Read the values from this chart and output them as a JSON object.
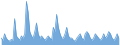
{
  "values": [
    1.5,
    1.0,
    2.5,
    1.5,
    1.0,
    0.8,
    1.2,
    1.0,
    6.0,
    2.0,
    1.5,
    1.0,
    2.0,
    1.5,
    2.5,
    10.0,
    7.5,
    3.0,
    2.0,
    1.5,
    3.0,
    5.0,
    2.5,
    1.5,
    2.0,
    1.5,
    1.0,
    1.5,
    2.0,
    1.5,
    1.0,
    4.0,
    3.0,
    7.0,
    4.0,
    2.5,
    1.5,
    1.5,
    2.5,
    4.0,
    2.0,
    1.5,
    1.5,
    1.0,
    0.8,
    1.5,
    2.0,
    2.5,
    1.5,
    1.0,
    2.5,
    3.0,
    2.5,
    1.5,
    1.0,
    1.5,
    2.5,
    2.0,
    1.5,
    1.0,
    1.5,
    2.5,
    1.5,
    2.0,
    3.0,
    2.5,
    1.5,
    1.0,
    1.5,
    2.5,
    1.5
  ],
  "line_color": "#5b9bd5",
  "fill_color": "#5b9bd5",
  "fill_alpha": 0.85,
  "background_color": "#ffffff",
  "ylim_min": 0
}
